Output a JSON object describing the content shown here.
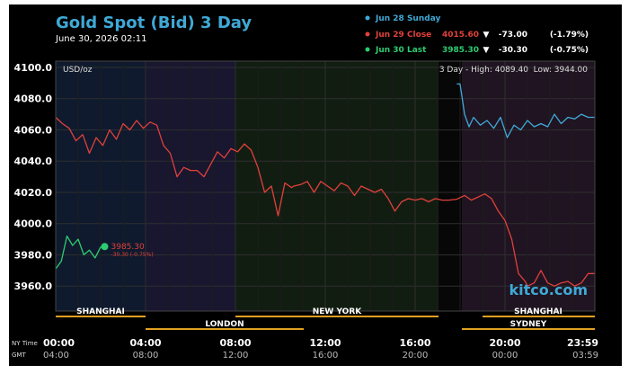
{
  "header": {
    "title": "Gold Spot (Bid) 3 Day",
    "timestamp": "June 30, 2026 02:11"
  },
  "legend": [
    {
      "label": "Jun 28 Sunday",
      "value": "",
      "arrow": "",
      "change": "",
      "percent": "",
      "color": "#3fa9d6"
    },
    {
      "label": "Jun 29 Close",
      "value": "4015.60",
      "arrow": "▼",
      "change": "-73.00",
      "percent": "(-1.79%)",
      "color": "#e0413a"
    },
    {
      "label": "Jun 30 Last",
      "value": "3985.30",
      "arrow": "▼",
      "change": "-30.30",
      "percent": "(-0.75%)",
      "color": "#2ecc71"
    }
  ],
  "plot": {
    "unit": "USD/oz",
    "stats": "3 Day - High: 4089.40  Low: 3944.00",
    "watermark": "kitco.com",
    "last_price_label": "3985.30",
    "last_change_label": "-30.30 (-0.75%)"
  },
  "sessions": {
    "top": [
      "SHANGHAI",
      "NEW YORK",
      "SHANGHAI"
    ],
    "bottom": [
      "LONDON",
      "SYDNEY"
    ]
  },
  "time_axis": {
    "row1_label": "NY Time",
    "row2_label": "GMT",
    "ny": [
      "00:00",
      "04:00",
      "08:00",
      "12:00",
      "16:00",
      "20:00",
      "23:59"
    ],
    "gmt": [
      "04:00",
      "08:00",
      "12:00",
      "16:00",
      "20:00",
      "00:00",
      "03:59"
    ]
  },
  "colors": {
    "background": "#000000",
    "axis_text": "#ffffff",
    "title": "#3fa9d6",
    "sessions_bar": "#e0a020"
  },
  "chart_data": {
    "type": "line",
    "xlabel": "",
    "ylabel": "",
    "x_unit": "hours (NY Time)",
    "xlim": [
      0,
      24
    ],
    "ylim": [
      3944,
      4104
    ],
    "y_ticks": [
      3960,
      3980,
      4000,
      4020,
      4040,
      4060,
      4080,
      4100
    ],
    "y_tick_labels": [
      "3960.0",
      "3980.0",
      "4000.0",
      "4020.0",
      "4040.0",
      "4060.0",
      "4080.0",
      "4100.0"
    ],
    "series": [
      {
        "name": "Jun 28 Sunday",
        "color": "#3fa9d6",
        "x": [
          17.85,
          18.0,
          18.2,
          18.4,
          18.6,
          18.9,
          19.2,
          19.5,
          19.8,
          20.1,
          20.4,
          20.7,
          21.0,
          21.3,
          21.6,
          21.9,
          22.2,
          22.5,
          22.8,
          23.1,
          23.4,
          23.7,
          24.0
        ],
        "y": [
          4089.4,
          4089.4,
          4070,
          4062,
          4068,
          4063,
          4066,
          4061,
          4068,
          4055,
          4063,
          4060,
          4066,
          4062,
          4064,
          4062,
          4070,
          4064,
          4068,
          4067,
          4070,
          4068,
          4068
        ]
      },
      {
        "name": "Jun 29 Close",
        "color": "#e0413a",
        "x": [
          0.0,
          0.3,
          0.6,
          0.9,
          1.2,
          1.5,
          1.8,
          2.1,
          2.4,
          2.7,
          3.0,
          3.3,
          3.6,
          3.9,
          4.2,
          4.5,
          4.8,
          5.1,
          5.4,
          5.7,
          6.0,
          6.3,
          6.6,
          6.9,
          7.2,
          7.5,
          7.8,
          8.1,
          8.4,
          8.7,
          9.0,
          9.3,
          9.6,
          9.9,
          10.2,
          10.5,
          10.6,
          10.9,
          11.2,
          11.5,
          11.8,
          12.1,
          12.4,
          12.7,
          13.0,
          13.3,
          13.6,
          13.9,
          14.2,
          14.5,
          14.8,
          15.1,
          15.4,
          15.7,
          16.0,
          16.3,
          16.6,
          16.9,
          17.2,
          17.5,
          17.85,
          18.2,
          18.5,
          18.8,
          19.1,
          19.4,
          19.7,
          20.0,
          20.3,
          20.6,
          20.9,
          21.0,
          21.3,
          21.6,
          21.9,
          22.2,
          22.5,
          22.8,
          23.1,
          23.4,
          23.7,
          24.0
        ],
        "y": [
          4068,
          4064,
          4061,
          4053,
          4057,
          4045,
          4055,
          4050,
          4060,
          4054,
          4064,
          4060,
          4066,
          4061,
          4065,
          4063,
          4050,
          4045,
          4030,
          4036,
          4034,
          4034,
          4030,
          4038,
          4046,
          4042,
          4048,
          4046,
          4051,
          4047,
          4036,
          4020,
          4024,
          4005,
          4026,
          4023,
          4024,
          4025,
          4027,
          4020,
          4027,
          4024,
          4021,
          4026,
          4024,
          4018,
          4024,
          4022,
          4020,
          4022,
          4016,
          4008,
          4014,
          4016,
          4015,
          4016,
          4014,
          4016,
          4015,
          4015,
          4015.6,
          4018,
          4015,
          4017,
          4019,
          4016,
          4008,
          4002,
          3990,
          3968,
          3963,
          3960,
          3962,
          3970,
          3962,
          3960,
          3962,
          3963,
          3960,
          3962,
          3968,
          3968
        ]
      },
      {
        "name": "Jun 30 Last",
        "color": "#2ecc71",
        "x": [
          0.0,
          0.25,
          0.5,
          0.75,
          1.0,
          1.25,
          1.5,
          1.75,
          2.0,
          2.18
        ],
        "y": [
          3971,
          3976,
          3992,
          3986,
          3990,
          3980,
          3983,
          3978,
          3985,
          3985.3
        ]
      }
    ]
  }
}
